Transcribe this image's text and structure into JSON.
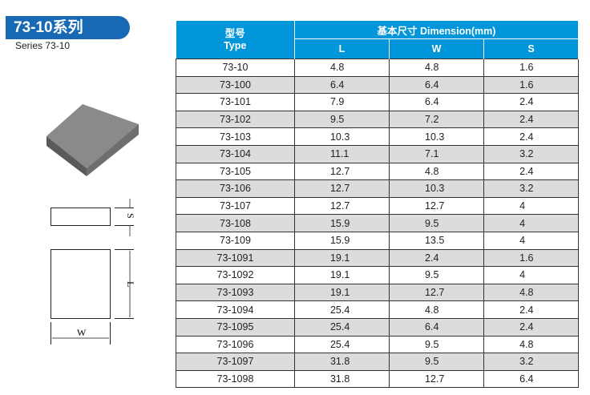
{
  "header": {
    "title": "73-10系列",
    "subtitle": "Series 73-10"
  },
  "diagram": {
    "label_s": "S",
    "label_l": "L",
    "label_w": "W"
  },
  "table": {
    "type_header_cn": "型号",
    "type_header_en": "Type",
    "dimension_header": "基本尺寸  Dimension(mm)",
    "columns": [
      "L",
      "W",
      "S"
    ],
    "rows": [
      [
        "73-10",
        "4.8",
        "4.8",
        "1.6"
      ],
      [
        "73-100",
        "6.4",
        "6.4",
        "1.6"
      ],
      [
        "73-101",
        "7.9",
        "6.4",
        "2.4"
      ],
      [
        "73-102",
        "9.5",
        "7.2",
        "2.4"
      ],
      [
        "73-103",
        "10.3",
        "10.3",
        "2.4"
      ],
      [
        "73-104",
        "11.1",
        "7.1",
        "3.2"
      ],
      [
        "73-105",
        "12.7",
        "4.8",
        "2.4"
      ],
      [
        "73-106",
        "12.7",
        "10.3",
        "3.2"
      ],
      [
        "73-107",
        "12.7",
        "12.7",
        "4"
      ],
      [
        "73-108",
        "15.9",
        "9.5",
        "4"
      ],
      [
        "73-109",
        "15.9",
        "13.5",
        "4"
      ],
      [
        "73-1091",
        "19.1",
        "2.4",
        "1.6"
      ],
      [
        "73-1092",
        "19.1",
        "9.5",
        "4"
      ],
      [
        "73-1093",
        "19.1",
        "12.7",
        "4.8"
      ],
      [
        "73-1094",
        "25.4",
        "4.8",
        "2.4"
      ],
      [
        "73-1095",
        "25.4",
        "6.4",
        "2.4"
      ],
      [
        "73-1096",
        "25.4",
        "9.5",
        "4.8"
      ],
      [
        "73-1097",
        "31.8",
        "9.5",
        "3.2"
      ],
      [
        "73-1098",
        "31.8",
        "12.7",
        "6.4"
      ]
    ]
  },
  "colors": {
    "header_blue": "#0096d9",
    "banner_blue": "#1769b3",
    "alt_row": "#dcdcdc"
  }
}
